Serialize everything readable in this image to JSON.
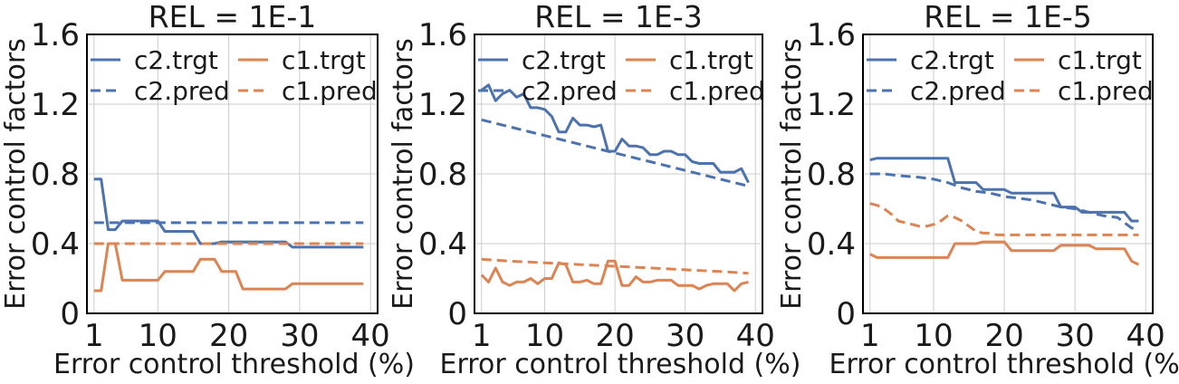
{
  "chart_data": [
    {
      "type": "line",
      "title": "REL = 1E-1",
      "xlabel": "Error control threshold (%)",
      "ylabel": "Error control factors",
      "xlim": [
        0,
        41
      ],
      "ylim": [
        0,
        1.6
      ],
      "xticks": [
        1,
        10,
        20,
        30,
        40
      ],
      "yticks": [
        0,
        0.4,
        0.8,
        1.2,
        1.6
      ],
      "xtick_labels": [
        "1",
        "10",
        "20",
        "30",
        "40"
      ],
      "ytick_labels": [
        "0",
        "0.4",
        "0.8",
        "1.2",
        "1.6"
      ],
      "grid": true,
      "legend_position": "top",
      "series": [
        {
          "name": "c2.trgt",
          "color": "#4c72b0",
          "dash": "solid",
          "x": [
            1,
            2,
            3,
            4,
            5,
            6,
            7,
            8,
            9,
            10,
            11,
            12,
            13,
            14,
            15,
            16,
            17,
            18,
            19,
            20,
            21,
            22,
            23,
            24,
            25,
            26,
            27,
            28,
            29,
            30,
            31,
            32,
            33,
            34,
            35,
            36,
            37,
            38,
            39
          ],
          "y": [
            0.77,
            0.77,
            0.48,
            0.48,
            0.53,
            0.53,
            0.53,
            0.53,
            0.53,
            0.53,
            0.47,
            0.47,
            0.47,
            0.47,
            0.47,
            0.4,
            0.4,
            0.4,
            0.41,
            0.41,
            0.41,
            0.41,
            0.41,
            0.41,
            0.41,
            0.41,
            0.41,
            0.41,
            0.38,
            0.38,
            0.38,
            0.38,
            0.38,
            0.38,
            0.38,
            0.38,
            0.38,
            0.38,
            0.38
          ]
        },
        {
          "name": "c2.pred",
          "color": "#4c72b0",
          "dash": "dashed",
          "x": [
            1,
            39
          ],
          "y": [
            0.52,
            0.52
          ]
        },
        {
          "name": "c1.trgt",
          "color": "#dd8452",
          "dash": "solid",
          "x": [
            1,
            2,
            3,
            4,
            5,
            6,
            7,
            8,
            9,
            10,
            11,
            12,
            13,
            14,
            15,
            16,
            17,
            18,
            19,
            20,
            21,
            22,
            23,
            24,
            25,
            26,
            27,
            28,
            29,
            30,
            31,
            32,
            33,
            34,
            35,
            36,
            37,
            38,
            39
          ],
          "y": [
            0.13,
            0.13,
            0.4,
            0.4,
            0.19,
            0.19,
            0.19,
            0.19,
            0.19,
            0.19,
            0.24,
            0.24,
            0.24,
            0.24,
            0.24,
            0.31,
            0.31,
            0.31,
            0.24,
            0.24,
            0.24,
            0.14,
            0.14,
            0.14,
            0.14,
            0.14,
            0.14,
            0.14,
            0.17,
            0.17,
            0.17,
            0.17,
            0.17,
            0.17,
            0.17,
            0.17,
            0.17,
            0.17,
            0.17
          ]
        },
        {
          "name": "c1.pred",
          "color": "#dd8452",
          "dash": "dashed",
          "x": [
            1,
            39
          ],
          "y": [
            0.4,
            0.4
          ]
        }
      ]
    },
    {
      "type": "line",
      "title": "REL = 1E-3",
      "xlabel": "Error control threshold (%)",
      "ylabel": "Error control factors",
      "xlim": [
        0,
        41
      ],
      "ylim": [
        0,
        1.6
      ],
      "xticks": [
        1,
        10,
        20,
        30,
        40
      ],
      "yticks": [
        0,
        0.4,
        0.8,
        1.2,
        1.6
      ],
      "xtick_labels": [
        "1",
        "10",
        "20",
        "30",
        "40"
      ],
      "ytick_labels": [
        "0",
        "0.4",
        "0.8",
        "1.2",
        "1.6"
      ],
      "grid": true,
      "legend_position": "top",
      "series": [
        {
          "name": "c2.trgt",
          "color": "#4c72b0",
          "dash": "solid",
          "x": [
            1,
            2,
            3,
            4,
            5,
            6,
            7,
            8,
            9,
            10,
            11,
            12,
            13,
            14,
            15,
            16,
            17,
            18,
            19,
            20,
            21,
            22,
            23,
            24,
            25,
            26,
            27,
            28,
            29,
            30,
            31,
            32,
            33,
            34,
            35,
            36,
            37,
            38,
            39
          ],
          "y": [
            1.28,
            1.31,
            1.22,
            1.26,
            1.28,
            1.24,
            1.26,
            1.18,
            1.18,
            1.17,
            1.13,
            1.04,
            1.04,
            1.12,
            1.08,
            1.08,
            1.07,
            1.08,
            0.93,
            0.93,
            1.0,
            0.96,
            0.96,
            0.95,
            0.91,
            0.91,
            0.93,
            0.93,
            0.91,
            0.91,
            0.87,
            0.86,
            0.86,
            0.86,
            0.81,
            0.81,
            0.81,
            0.83,
            0.75
          ]
        },
        {
          "name": "c2.pred",
          "color": "#4c72b0",
          "dash": "dashed",
          "x": [
            1,
            5,
            10,
            15,
            20,
            25,
            30,
            35,
            39
          ],
          "y": [
            1.11,
            1.07,
            1.02,
            0.97,
            0.92,
            0.87,
            0.82,
            0.77,
            0.73
          ]
        },
        {
          "name": "c1.trgt",
          "color": "#dd8452",
          "dash": "solid",
          "x": [
            1,
            2,
            3,
            4,
            5,
            6,
            7,
            8,
            9,
            10,
            11,
            12,
            13,
            14,
            15,
            16,
            17,
            18,
            19,
            20,
            21,
            22,
            23,
            24,
            25,
            26,
            27,
            28,
            29,
            30,
            31,
            32,
            33,
            34,
            35,
            36,
            37,
            38,
            39
          ],
          "y": [
            0.22,
            0.18,
            0.26,
            0.18,
            0.16,
            0.18,
            0.18,
            0.2,
            0.17,
            0.2,
            0.2,
            0.29,
            0.28,
            0.18,
            0.18,
            0.19,
            0.17,
            0.17,
            0.3,
            0.3,
            0.16,
            0.16,
            0.21,
            0.18,
            0.18,
            0.19,
            0.19,
            0.19,
            0.16,
            0.16,
            0.16,
            0.14,
            0.16,
            0.17,
            0.17,
            0.17,
            0.13,
            0.17,
            0.18
          ]
        },
        {
          "name": "c1.pred",
          "color": "#dd8452",
          "dash": "dashed",
          "x": [
            1,
            5,
            10,
            15,
            20,
            25,
            30,
            35,
            39
          ],
          "y": [
            0.31,
            0.3,
            0.29,
            0.28,
            0.27,
            0.26,
            0.25,
            0.24,
            0.23
          ]
        }
      ]
    },
    {
      "type": "line",
      "title": "REL = 1E-5",
      "xlabel": "Error control threshold (%)",
      "ylabel": "Error control factors",
      "xlim": [
        0,
        41
      ],
      "ylim": [
        0,
        1.6
      ],
      "xticks": [
        1,
        10,
        20,
        30,
        40
      ],
      "yticks": [
        0,
        0.4,
        0.8,
        1.2,
        1.6
      ],
      "xtick_labels": [
        "1",
        "10",
        "20",
        "30",
        "40"
      ],
      "ytick_labels": [
        "0",
        "0.4",
        "0.8",
        "1.2",
        "1.6"
      ],
      "grid": true,
      "legend_position": "top",
      "series": [
        {
          "name": "c2.trgt",
          "color": "#4c72b0",
          "dash": "solid",
          "x": [
            1,
            2,
            3,
            4,
            5,
            6,
            7,
            8,
            9,
            10,
            11,
            12,
            13,
            14,
            15,
            16,
            17,
            18,
            19,
            20,
            21,
            22,
            23,
            24,
            25,
            26,
            27,
            28,
            29,
            30,
            31,
            32,
            33,
            34,
            35,
            36,
            37,
            38,
            39
          ],
          "y": [
            0.88,
            0.89,
            0.89,
            0.89,
            0.89,
            0.89,
            0.89,
            0.89,
            0.89,
            0.89,
            0.89,
            0.89,
            0.75,
            0.75,
            0.75,
            0.75,
            0.71,
            0.71,
            0.71,
            0.71,
            0.69,
            0.69,
            0.69,
            0.69,
            0.69,
            0.69,
            0.69,
            0.61,
            0.61,
            0.61,
            0.58,
            0.58,
            0.58,
            0.58,
            0.58,
            0.58,
            0.58,
            0.53,
            0.53
          ]
        },
        {
          "name": "c2.pred",
          "color": "#4c72b0",
          "dash": "dashed",
          "x": [
            1,
            3,
            5,
            8,
            10,
            12,
            14,
            16,
            18,
            20,
            22,
            24,
            26,
            28,
            30,
            32,
            34,
            36,
            38,
            39
          ],
          "y": [
            0.8,
            0.8,
            0.79,
            0.78,
            0.77,
            0.75,
            0.72,
            0.7,
            0.69,
            0.67,
            0.66,
            0.65,
            0.63,
            0.61,
            0.6,
            0.58,
            0.56,
            0.55,
            0.49,
            0.48
          ]
        },
        {
          "name": "c1.trgt",
          "color": "#dd8452",
          "dash": "solid",
          "x": [
            1,
            2,
            3,
            4,
            5,
            6,
            7,
            8,
            9,
            10,
            11,
            12,
            13,
            14,
            15,
            16,
            17,
            18,
            19,
            20,
            21,
            22,
            23,
            24,
            25,
            26,
            27,
            28,
            29,
            30,
            31,
            32,
            33,
            34,
            35,
            36,
            37,
            38,
            39
          ],
          "y": [
            0.34,
            0.32,
            0.32,
            0.32,
            0.32,
            0.32,
            0.32,
            0.32,
            0.32,
            0.32,
            0.32,
            0.32,
            0.4,
            0.4,
            0.4,
            0.4,
            0.41,
            0.41,
            0.41,
            0.41,
            0.36,
            0.36,
            0.36,
            0.36,
            0.36,
            0.36,
            0.36,
            0.39,
            0.39,
            0.39,
            0.39,
            0.39,
            0.37,
            0.37,
            0.37,
            0.37,
            0.37,
            0.3,
            0.28
          ]
        },
        {
          "name": "c1.pred",
          "color": "#dd8452",
          "dash": "dashed",
          "x": [
            1,
            2,
            3,
            4,
            5,
            6,
            7,
            8,
            9,
            10,
            11,
            12,
            13,
            14,
            15,
            16,
            17,
            18,
            19,
            20,
            21,
            22,
            25,
            30,
            35,
            39
          ],
          "y": [
            0.63,
            0.62,
            0.6,
            0.57,
            0.53,
            0.52,
            0.51,
            0.5,
            0.5,
            0.51,
            0.53,
            0.56,
            0.55,
            0.53,
            0.5,
            0.47,
            0.46,
            0.46,
            0.45,
            0.45,
            0.45,
            0.45,
            0.45,
            0.45,
            0.45,
            0.45
          ]
        }
      ]
    }
  ]
}
